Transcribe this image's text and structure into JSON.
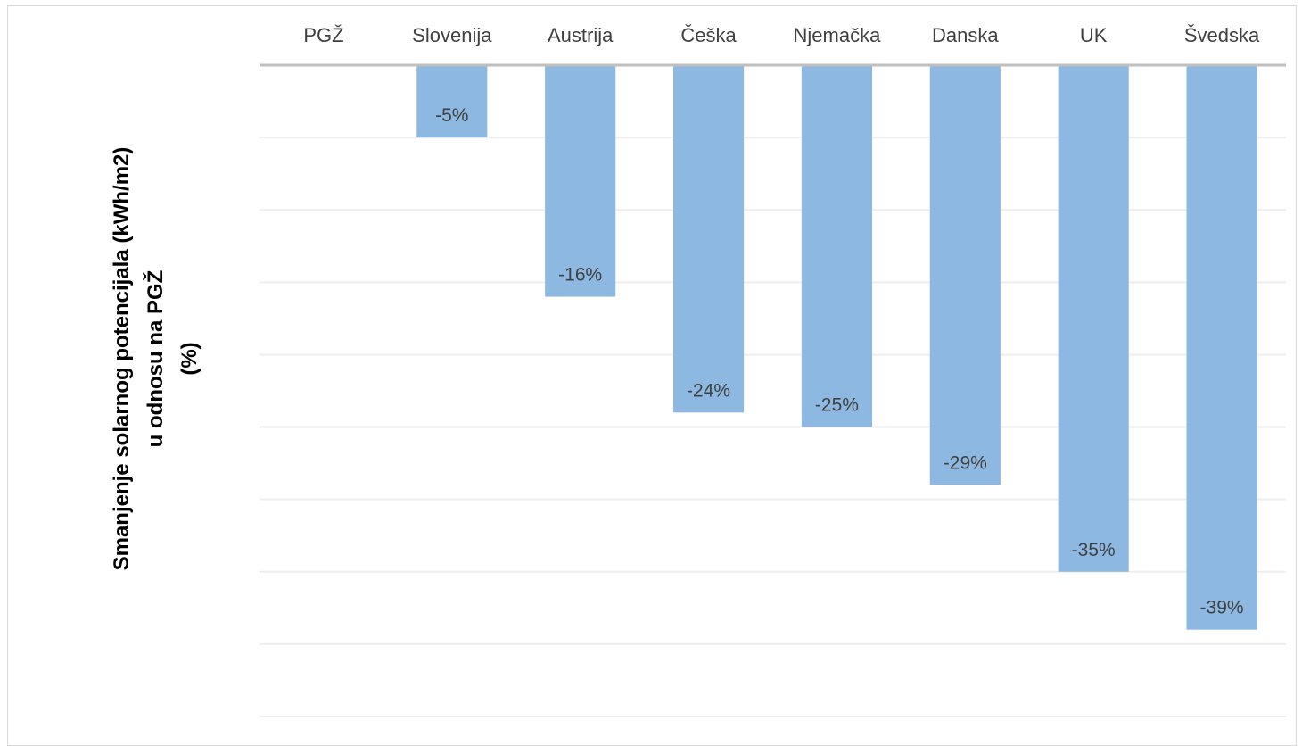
{
  "chart_data": {
    "type": "bar",
    "categories": [
      "PGŽ",
      "Slovenija",
      "Austrija",
      "Češka",
      "Njemačka",
      "Danska",
      "UK",
      "Švedska"
    ],
    "values": [
      0,
      -5,
      -16,
      -24,
      -25,
      -29,
      -35,
      -39
    ],
    "data_labels": [
      "",
      "-5%",
      "-16%",
      "-24%",
      "-25%",
      "-29%",
      "-35%",
      "-39%"
    ],
    "ylabel": "Smanjenje solarnog potencijala (kWh/m2)\nu odnosu na PGŽ\n(%)",
    "xlabel": "",
    "title": "",
    "ylim": [
      -45,
      0
    ],
    "grid": true,
    "bar_color": "#8db8e2",
    "axis_color": "#bfbfbf",
    "grid_color": "#eeeeee"
  }
}
